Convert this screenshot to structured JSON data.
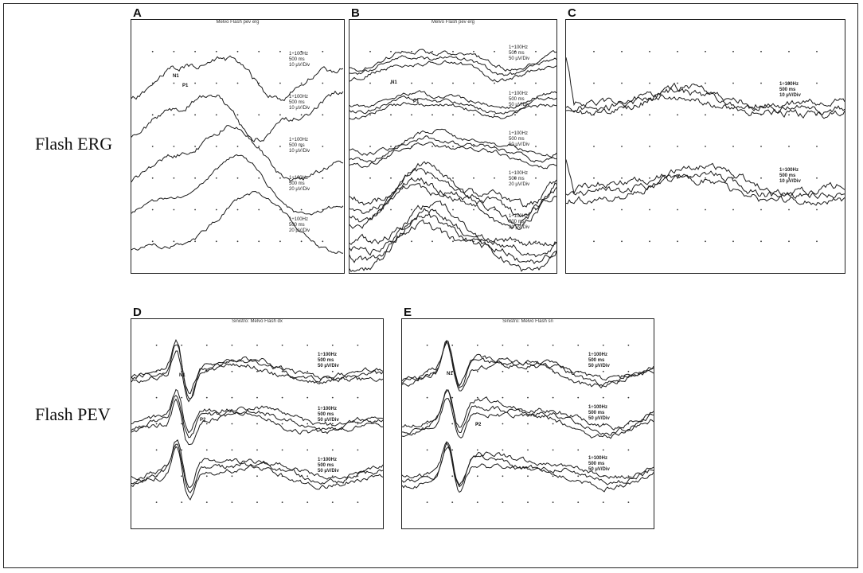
{
  "row_labels": {
    "erg": "Flash ERG",
    "pev": "Flash PEV"
  },
  "panels": {
    "A": {
      "letter": "A",
      "title": "Melvo Flash pev erg",
      "scales": [
        [
          "1÷100Hz",
          "500 ms",
          "10 µV/Div"
        ],
        [
          "1÷100Hz",
          "500 ms",
          "10 µV/Div"
        ],
        [
          "1÷100Hz",
          "500 ms",
          "10 µV/Div"
        ],
        [
          "1÷100Hz",
          "500 ms",
          "20 µV/Div"
        ],
        [
          "1÷100Hz",
          "500 ms",
          "20 µV/Div"
        ]
      ],
      "markers": [
        "N1",
        "P1"
      ]
    },
    "B": {
      "letter": "B",
      "title": "Melvo Flash pev erg",
      "scales": [
        [
          "1÷100Hz",
          "500 ms",
          "50 µV/Div"
        ],
        [
          "1÷100Hz",
          "500 ms",
          "50 µV/Div"
        ],
        [
          "1÷100Hz",
          "500 ms",
          "50 µV/Div"
        ],
        [
          "1÷100Hz",
          "500 ms",
          "20 µV/Div"
        ],
        [
          "1÷100Hz",
          "500 ms",
          "20 µV/Div"
        ]
      ],
      "markers": [
        "N1",
        "P1"
      ]
    },
    "C": {
      "letter": "C",
      "title": "",
      "scales": [
        [
          "1÷100Hz",
          "500 ms",
          "10 µV/Div"
        ],
        [
          "1÷100Hz",
          "500 ms",
          "10 µV/Div"
        ]
      ],
      "markers": []
    },
    "D": {
      "letter": "D",
      "title": "Sinistro: Melvo Flash dx",
      "scales": [
        [
          "1÷100Hz",
          "500 ms",
          "50 µV/Div"
        ],
        [
          "1÷100Hz",
          "500 ms",
          "50 µV/Div"
        ],
        [
          "1÷100Hz",
          "500 ms",
          "50 µV/Div"
        ]
      ],
      "markers": [
        "N1",
        "P2"
      ]
    },
    "E": {
      "letter": "E",
      "title": "Sinistro: Melvo Flash sn",
      "scales": [
        [
          "1÷100Hz",
          "500 ms",
          "50 µV/Div"
        ],
        [
          "1÷100Hz",
          "500 ms",
          "50 µV/Div"
        ],
        [
          "1÷100Hz",
          "500 ms",
          "50 µV/Div"
        ]
      ],
      "markers": [
        "N1",
        "P2"
      ]
    }
  }
}
